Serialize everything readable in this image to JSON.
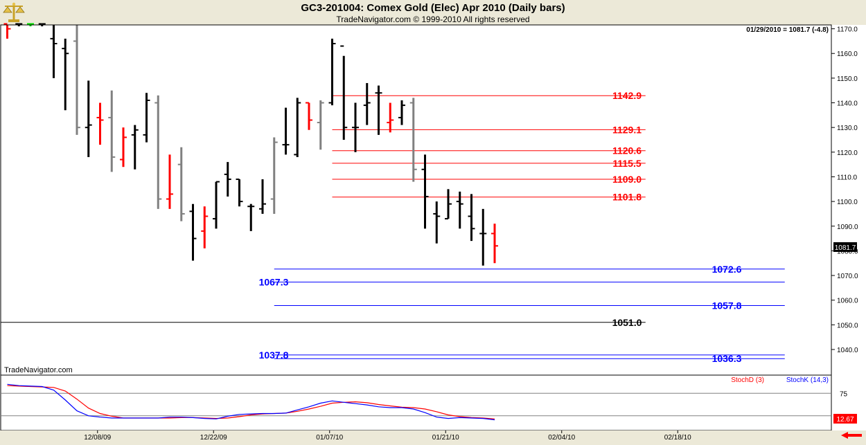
{
  "header": {
    "title": "GC3-201004:  Comex Gold (Elec) Apr 2010  (Daily bars)",
    "subtitle": "TradeNavigator.com © 1999-2010 All rights reserved",
    "logo_icon": "scales-logo-icon"
  },
  "readout": "01/29/2010 = 1081.7 (-4.8)",
  "watermark": "TradeNavigator.com",
  "last_price_label": "1081.7",
  "chart_data": {
    "type": "bar",
    "subtype": "ohlc-daily",
    "price_axis": {
      "min": 1030,
      "max": 1175,
      "ticks": [
        "1170.0",
        "1160.0",
        "1150.0",
        "1140.0",
        "1130.0",
        "1120.0",
        "1110.0",
        "1100.0",
        "1090.0",
        "1080.0",
        "1070.0",
        "1060.0",
        "1050.0",
        "1040.0"
      ]
    },
    "date_axis": {
      "labels": [
        "12/08/09",
        "12/22/09",
        "01/07/10",
        "01/21/10",
        "02/04/10",
        "02/18/10"
      ],
      "label_bar_index": [
        7,
        17,
        27,
        37,
        47,
        57
      ]
    },
    "bars": [
      {
        "h": 1176,
        "l": 1166,
        "o": 1172,
        "c": 1170,
        "color": "red"
      },
      {
        "h": 1173,
        "l": 1171,
        "o": 1172,
        "c": 1172,
        "color": "black"
      },
      {
        "h": 1173,
        "l": 1171,
        "o": 1172,
        "c": 1172,
        "color": "green"
      },
      {
        "h": 1173,
        "l": 1171,
        "o": 1172,
        "c": 1172,
        "color": "black"
      },
      {
        "h": 1172,
        "l": 1150,
        "o": 1166,
        "c": 1164,
        "color": "black"
      },
      {
        "h": 1166,
        "l": 1137,
        "o": 1162,
        "c": 1160,
        "color": "black"
      },
      {
        "h": 1172,
        "l": 1127,
        "o": 1165,
        "c": 1130,
        "color": "gray"
      },
      {
        "h": 1149,
        "l": 1118,
        "o": 1130,
        "c": 1131,
        "color": "black"
      },
      {
        "h": 1140,
        "l": 1123,
        "o": 1134,
        "c": 1133,
        "color": "red"
      },
      {
        "h": 1145,
        "l": 1112,
        "o": 1134,
        "c": 1118,
        "color": "gray"
      },
      {
        "h": 1130,
        "l": 1114,
        "o": 1117,
        "c": 1126,
        "color": "red"
      },
      {
        "h": 1131,
        "l": 1113,
        "o": 1127,
        "c": 1129,
        "color": "black"
      },
      {
        "h": 1144,
        "l": 1124,
        "o": 1127,
        "c": 1141,
        "color": "black"
      },
      {
        "h": 1143,
        "l": 1097,
        "o": 1140,
        "c": 1101,
        "color": "gray"
      },
      {
        "h": 1119,
        "l": 1097,
        "o": 1101,
        "c": 1103,
        "color": "red"
      },
      {
        "h": 1122,
        "l": 1092,
        "o": 1115,
        "c": 1095,
        "color": "gray"
      },
      {
        "h": 1099,
        "l": 1076,
        "o": 1096,
        "c": 1085,
        "color": "black"
      },
      {
        "h": 1098,
        "l": 1081,
        "o": 1088,
        "c": 1094,
        "color": "red"
      },
      {
        "h": 1108,
        "l": 1089,
        "o": 1093,
        "c": 1108,
        "color": "black"
      },
      {
        "h": 1116,
        "l": 1102,
        "o": 1111,
        "c": 1109,
        "color": "black"
      },
      {
        "h": 1109,
        "l": 1098,
        "o": 1109,
        "c": 1100,
        "color": "black"
      },
      {
        "h": 1099,
        "l": 1088,
        "o": 1098,
        "c": 1098,
        "color": "black"
      },
      {
        "h": 1109,
        "l": 1095,
        "o": 1097,
        "c": 1099,
        "color": "black"
      },
      {
        "h": 1126,
        "l": 1095,
        "o": 1101,
        "c": 1124,
        "color": "gray"
      },
      {
        "h": 1138,
        "l": 1119,
        "o": 1123,
        "c": 1123,
        "color": "black"
      },
      {
        "h": 1142,
        "l": 1118,
        "o": 1119,
        "c": 1140,
        "color": "black"
      },
      {
        "h": 1140,
        "l": 1129,
        "o": 1140,
        "c": 1133,
        "color": "red"
      },
      {
        "h": 1141,
        "l": 1121,
        "o": 1132,
        "c": 1140,
        "color": "gray"
      },
      {
        "h": 1166,
        "l": 1139,
        "o": 1140,
        "c": 1164,
        "color": "black"
      },
      {
        "h": 1159,
        "l": 1125,
        "o": 1163,
        "c": 1130,
        "color": "black"
      },
      {
        "h": 1140,
        "l": 1120,
        "o": 1130,
        "c": 1130,
        "color": "black"
      },
      {
        "h": 1148,
        "l": 1131,
        "o": 1139,
        "c": 1140,
        "color": "black"
      },
      {
        "h": 1147,
        "l": 1127,
        "o": 1144,
        "c": 1144,
        "color": "black"
      },
      {
        "h": 1140,
        "l": 1128,
        "o": 1132,
        "c": 1133,
        "color": "red"
      },
      {
        "h": 1141,
        "l": 1131,
        "o": 1134,
        "c": 1139,
        "color": "black"
      },
      {
        "h": 1142,
        "l": 1108,
        "o": 1140,
        "c": 1113,
        "color": "gray"
      },
      {
        "h": 1119,
        "l": 1089,
        "o": 1113,
        "c": 1102,
        "color": "black"
      },
      {
        "h": 1100,
        "l": 1083,
        "o": 1095,
        "c": 1094,
        "color": "black"
      },
      {
        "h": 1105,
        "l": 1093,
        "o": 1093,
        "c": 1099,
        "color": "black"
      },
      {
        "h": 1104,
        "l": 1089,
        "o": 1100,
        "c": 1099,
        "color": "black"
      },
      {
        "h": 1103,
        "l": 1084,
        "o": 1094,
        "c": 1089,
        "color": "black"
      },
      {
        "h": 1097,
        "l": 1074,
        "o": 1087,
        "c": 1087,
        "color": "black"
      },
      {
        "h": 1091,
        "l": 1075,
        "o": 1087,
        "c": 1082,
        "color": "red"
      }
    ],
    "levels": [
      {
        "value": 1142.9,
        "label": "1142.9",
        "color": "#ff0000",
        "from_bar": 28,
        "to_bar": 55,
        "label_side": "right"
      },
      {
        "value": 1129.1,
        "label": "1129.1",
        "color": "#ff0000",
        "from_bar": 28,
        "to_bar": 55,
        "label_side": "right"
      },
      {
        "value": 1120.6,
        "label": "1120.6",
        "color": "#ff0000",
        "from_bar": 28,
        "to_bar": 55,
        "label_side": "right"
      },
      {
        "value": 1115.5,
        "label": "1115.5",
        "color": "#ff0000",
        "from_bar": 28,
        "to_bar": 55,
        "label_side": "right"
      },
      {
        "value": 1109.0,
        "label": "1109.0",
        "color": "#ff0000",
        "from_bar": 28,
        "to_bar": 55,
        "label_side": "right"
      },
      {
        "value": 1101.8,
        "label": "1101.8",
        "color": "#ff0000",
        "from_bar": 28,
        "to_bar": 55,
        "label_side": "right"
      },
      {
        "value": 1072.6,
        "label": "1072.6",
        "color": "#0000ff",
        "from_bar": 23,
        "to_bar": 67,
        "label_side": "right"
      },
      {
        "value": 1067.3,
        "label": "1067.3",
        "color": "#0000ff",
        "from_bar": 23,
        "to_bar": 67,
        "label_side": "left"
      },
      {
        "value": 1057.8,
        "label": "1057.8",
        "color": "#0000ff",
        "from_bar": 23,
        "to_bar": 67,
        "label_side": "right"
      },
      {
        "value": 1051.0,
        "label": "1051.0",
        "color": "#000000",
        "from_bar": -1,
        "to_bar": 55,
        "label_side": "right"
      },
      {
        "value": 1037.8,
        "label": "1037.8",
        "color": "#0000ff",
        "from_bar": 23,
        "to_bar": 67,
        "label_side": "left"
      },
      {
        "value": 1036.3,
        "label": "1036.3",
        "color": "#0000ff",
        "from_bar": 23,
        "to_bar": 67,
        "label_side": "right"
      }
    ],
    "stochastic": {
      "range": [
        0,
        100
      ],
      "levels": [
        {
          "value": 75,
          "label": "75"
        },
        {
          "value": 25,
          "label": ""
        }
      ],
      "series": [
        {
          "name": "StochD (3)",
          "color": "#ff0000",
          "values": [
            92,
            91,
            90,
            89,
            88,
            80,
            62,
            42,
            30,
            24,
            20,
            20,
            20,
            20,
            20,
            21,
            21,
            20,
            19,
            20,
            23,
            27,
            29,
            30,
            31,
            35,
            40,
            46,
            53,
            55,
            56,
            54,
            50,
            47,
            44,
            43,
            40,
            34,
            27,
            23,
            21,
            20,
            18
          ]
        },
        {
          "name": "StochK (14,3)",
          "color": "#0000ff",
          "values": [
            95,
            92,
            91,
            90,
            82,
            60,
            36,
            25,
            22,
            20,
            20,
            20,
            20,
            20,
            22,
            22,
            21,
            19,
            18,
            24,
            28,
            29,
            30,
            30,
            31,
            38,
            45,
            53,
            58,
            55,
            52,
            49,
            45,
            43,
            43,
            40,
            32,
            22,
            19,
            21,
            20,
            19,
            16
          ]
        }
      ],
      "value_label": "12.67"
    }
  }
}
